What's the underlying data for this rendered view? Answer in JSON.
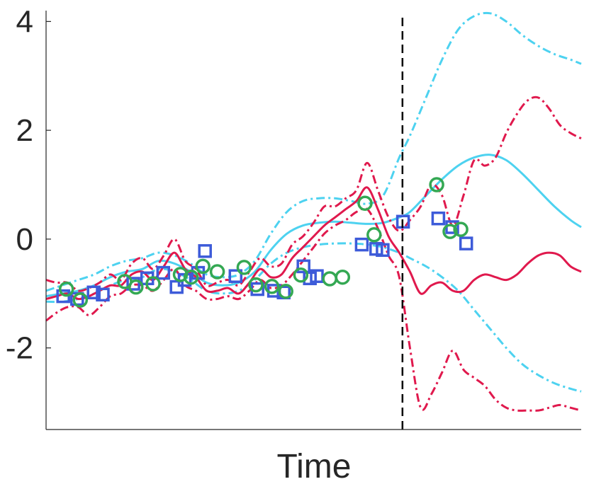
{
  "chart_data": {
    "type": "line",
    "title": "",
    "xlabel": "Time",
    "ylabel": "",
    "xlim": [
      0,
      100
    ],
    "ylim": [
      -3.5,
      4.2
    ],
    "yticks": [
      -2,
      0,
      2,
      4
    ],
    "ytick_labels": [
      "-2",
      "0",
      "2",
      "4"
    ],
    "grid": false,
    "legend": "none",
    "vline": {
      "x": 66.6,
      "style": "dashed",
      "color": "#000000"
    },
    "colors": {
      "cyan": "#4dd2f0",
      "red": "#e0194d",
      "blue": "#3d5bd9",
      "green": "#34a853"
    },
    "series": [
      {
        "color": "#4dd2f0",
        "style": "solid",
        "x": [
          0,
          3,
          6,
          9,
          12,
          15,
          18,
          21,
          24,
          27,
          30,
          33,
          36,
          39,
          42,
          45,
          48,
          51,
          54,
          57,
          60,
          63,
          66,
          68,
          71,
          74,
          77,
          80,
          83,
          86,
          89,
          92,
          95,
          98,
          100
        ],
        "y": [
          -1.05,
          -1.0,
          -0.95,
          -0.85,
          -0.7,
          -0.6,
          -0.55,
          -0.4,
          -0.45,
          -0.6,
          -0.8,
          -0.85,
          -0.8,
          -0.6,
          -0.2,
          0.1,
          0.25,
          0.3,
          0.32,
          0.3,
          0.28,
          0.3,
          0.4,
          0.5,
          0.8,
          1.1,
          1.35,
          1.5,
          1.55,
          1.45,
          1.2,
          0.9,
          0.6,
          0.35,
          0.22
        ]
      },
      {
        "color": "#4dd2f0",
        "style": "dashdot",
        "x": [
          0,
          3,
          6,
          9,
          12,
          15,
          18,
          21,
          24,
          27,
          30,
          33,
          36,
          39,
          42,
          45,
          48,
          51,
          54,
          57,
          60,
          63,
          66,
          68,
          71,
          74,
          77,
          80,
          83,
          86,
          89,
          92,
          95,
          98,
          100
        ],
        "y": [
          -0.95,
          -0.85,
          -0.75,
          -0.65,
          -0.5,
          -0.4,
          -0.35,
          -0.25,
          -0.3,
          -0.45,
          -0.65,
          -0.7,
          -0.65,
          -0.4,
          0.1,
          0.5,
          0.7,
          0.75,
          0.75,
          0.7,
          0.65,
          0.8,
          1.5,
          1.9,
          2.6,
          3.3,
          3.85,
          4.1,
          4.15,
          4.0,
          3.75,
          3.55,
          3.4,
          3.3,
          3.22
        ]
      },
      {
        "color": "#4dd2f0",
        "style": "dashdot",
        "x": [
          0,
          3,
          6,
          9,
          12,
          15,
          18,
          21,
          24,
          27,
          30,
          33,
          36,
          39,
          42,
          45,
          48,
          51,
          54,
          57,
          60,
          63,
          66,
          68,
          71,
          74,
          77,
          80,
          83,
          86,
          89,
          92,
          95,
          98,
          100
        ],
        "y": [
          -1.15,
          -1.15,
          -1.1,
          -1.0,
          -0.85,
          -0.75,
          -0.7,
          -0.55,
          -0.6,
          -0.75,
          -0.95,
          -1.0,
          -0.95,
          -0.75,
          -0.45,
          -0.25,
          -0.15,
          -0.1,
          -0.08,
          -0.08,
          -0.1,
          -0.15,
          -0.25,
          -0.35,
          -0.5,
          -0.7,
          -0.95,
          -1.3,
          -1.65,
          -2.0,
          -2.3,
          -2.5,
          -2.65,
          -2.75,
          -2.8
        ]
      },
      {
        "color": "#e0194d",
        "style": "solid",
        "x": [
          0,
          2,
          4,
          6,
          8,
          10,
          12,
          14,
          16,
          18,
          20,
          22,
          24,
          26,
          28,
          30,
          32,
          34,
          36,
          38,
          40,
          42,
          44,
          46,
          48,
          50,
          52,
          54,
          56,
          58,
          60,
          62,
          64,
          66,
          68,
          70,
          72,
          74,
          76,
          78,
          80,
          82,
          84,
          86,
          88,
          90,
          92,
          94,
          96,
          98,
          100
        ],
        "y": [
          -1.1,
          -1.05,
          -1.0,
          -1.1,
          -1.05,
          -0.95,
          -0.85,
          -0.85,
          -0.65,
          -0.6,
          -0.75,
          -0.5,
          -0.25,
          -0.55,
          -0.7,
          -0.95,
          -0.95,
          -0.9,
          -1.0,
          -0.8,
          -0.55,
          -0.7,
          -0.65,
          -0.35,
          -0.15,
          0.05,
          0.25,
          0.4,
          0.55,
          0.7,
          0.95,
          0.55,
          0.05,
          -0.25,
          -0.6,
          -1.0,
          -0.85,
          -0.8,
          -0.95,
          -0.95,
          -0.75,
          -0.65,
          -0.7,
          -0.75,
          -0.65,
          -0.45,
          -0.3,
          -0.25,
          -0.3,
          -0.5,
          -0.6
        ]
      },
      {
        "color": "#e0194d",
        "style": "dashdot",
        "x": [
          0,
          2,
          4,
          6,
          8,
          10,
          12,
          14,
          16,
          18,
          20,
          22,
          24,
          26,
          28,
          30,
          32,
          34,
          36,
          38,
          40,
          42,
          44,
          46,
          48,
          50,
          52,
          54,
          56,
          58,
          60,
          62,
          64,
          66,
          68,
          70,
          72,
          74,
          76,
          78,
          80,
          82,
          84,
          86,
          88,
          90,
          92,
          94,
          96,
          98,
          100
        ],
        "y": [
          -0.75,
          -0.8,
          -0.8,
          -0.95,
          -0.9,
          -0.8,
          -0.65,
          -0.75,
          -0.45,
          -0.35,
          -0.55,
          -0.3,
          0.0,
          -0.4,
          -0.55,
          -0.85,
          -0.8,
          -0.75,
          -0.85,
          -0.6,
          -0.35,
          -0.5,
          -0.45,
          -0.1,
          0.05,
          0.3,
          0.6,
          0.6,
          0.75,
          0.9,
          1.4,
          0.9,
          0.4,
          0.15,
          0.35,
          0.6,
          1.0,
          0.8,
          0.25,
          0.8,
          1.45,
          1.35,
          1.5,
          1.95,
          2.3,
          2.55,
          2.6,
          2.4,
          2.1,
          1.95,
          1.85
        ]
      },
      {
        "color": "#e0194d",
        "style": "dashdot",
        "x": [
          0,
          2,
          4,
          6,
          8,
          10,
          12,
          14,
          16,
          18,
          20,
          22,
          24,
          26,
          28,
          30,
          32,
          34,
          36,
          38,
          40,
          42,
          44,
          46,
          48,
          50,
          52,
          54,
          56,
          58,
          60,
          62,
          64,
          66,
          68,
          70,
          72,
          74,
          76,
          78,
          80,
          82,
          84,
          86,
          88,
          90,
          92,
          94,
          96,
          98,
          100
        ],
        "y": [
          -1.5,
          -1.35,
          -1.25,
          -1.25,
          -1.4,
          -1.25,
          -1.05,
          -1.0,
          -0.85,
          -0.85,
          -0.95,
          -0.75,
          -0.55,
          -0.85,
          -0.95,
          -1.1,
          -1.1,
          -1.05,
          -1.1,
          -0.95,
          -0.75,
          -0.9,
          -0.85,
          -0.65,
          -0.4,
          -0.15,
          0.1,
          0.25,
          0.35,
          0.5,
          0.55,
          0.2,
          -0.3,
          -0.7,
          -2.0,
          -3.1,
          -2.85,
          -2.45,
          -2.05,
          -2.4,
          -2.55,
          -2.7,
          -2.95,
          -3.1,
          -3.15,
          -3.15,
          -3.15,
          -3.1,
          -3.05,
          -3.1,
          -3.15
        ]
      }
    ],
    "markers": {
      "squares": [
        {
          "x": 3.2,
          "y": -1.05
        },
        {
          "x": 5.8,
          "y": -1.1
        },
        {
          "x": 8.9,
          "y": -0.98
        },
        {
          "x": 10.6,
          "y": -1.02
        },
        {
          "x": 16.3,
          "y": -0.82
        },
        {
          "x": 18.9,
          "y": -0.72
        },
        {
          "x": 21.9,
          "y": -0.62
        },
        {
          "x": 24.4,
          "y": -0.88
        },
        {
          "x": 25.9,
          "y": -0.75
        },
        {
          "x": 28.4,
          "y": -0.62
        },
        {
          "x": 29.7,
          "y": -0.22
        },
        {
          "x": 35.4,
          "y": -0.68
        },
        {
          "x": 39.5,
          "y": -0.92
        },
        {
          "x": 42.6,
          "y": -0.95
        },
        {
          "x": 44.4,
          "y": -0.98
        },
        {
          "x": 48.1,
          "y": -0.5
        },
        {
          "x": 49.3,
          "y": -0.72
        },
        {
          "x": 50.6,
          "y": -0.68
        },
        {
          "x": 59.0,
          "y": -0.1
        },
        {
          "x": 61.7,
          "y": -0.18
        },
        {
          "x": 62.9,
          "y": -0.2
        },
        {
          "x": 66.7,
          "y": 0.32
        },
        {
          "x": 73.3,
          "y": 0.38
        },
        {
          "x": 75.9,
          "y": 0.22
        },
        {
          "x": 78.5,
          "y": -0.08
        }
      ],
      "circles": [
        {
          "x": 3.8,
          "y": -0.92
        },
        {
          "x": 6.4,
          "y": -1.12
        },
        {
          "x": 14.7,
          "y": -0.78
        },
        {
          "x": 16.8,
          "y": -0.88
        },
        {
          "x": 20.0,
          "y": -0.82
        },
        {
          "x": 25.1,
          "y": -0.65
        },
        {
          "x": 27.1,
          "y": -0.7
        },
        {
          "x": 29.3,
          "y": -0.5
        },
        {
          "x": 32.0,
          "y": -0.6
        },
        {
          "x": 37.0,
          "y": -0.52
        },
        {
          "x": 39.2,
          "y": -0.84
        },
        {
          "x": 42.2,
          "y": -0.87
        },
        {
          "x": 44.8,
          "y": -0.96
        },
        {
          "x": 47.6,
          "y": -0.66
        },
        {
          "x": 53.0,
          "y": -0.73
        },
        {
          "x": 55.4,
          "y": -0.7
        },
        {
          "x": 59.6,
          "y": 0.66
        },
        {
          "x": 61.3,
          "y": 0.08
        },
        {
          "x": 73.0,
          "y": 1.0
        },
        {
          "x": 75.5,
          "y": 0.14
        },
        {
          "x": 77.5,
          "y": 0.18
        }
      ]
    }
  }
}
